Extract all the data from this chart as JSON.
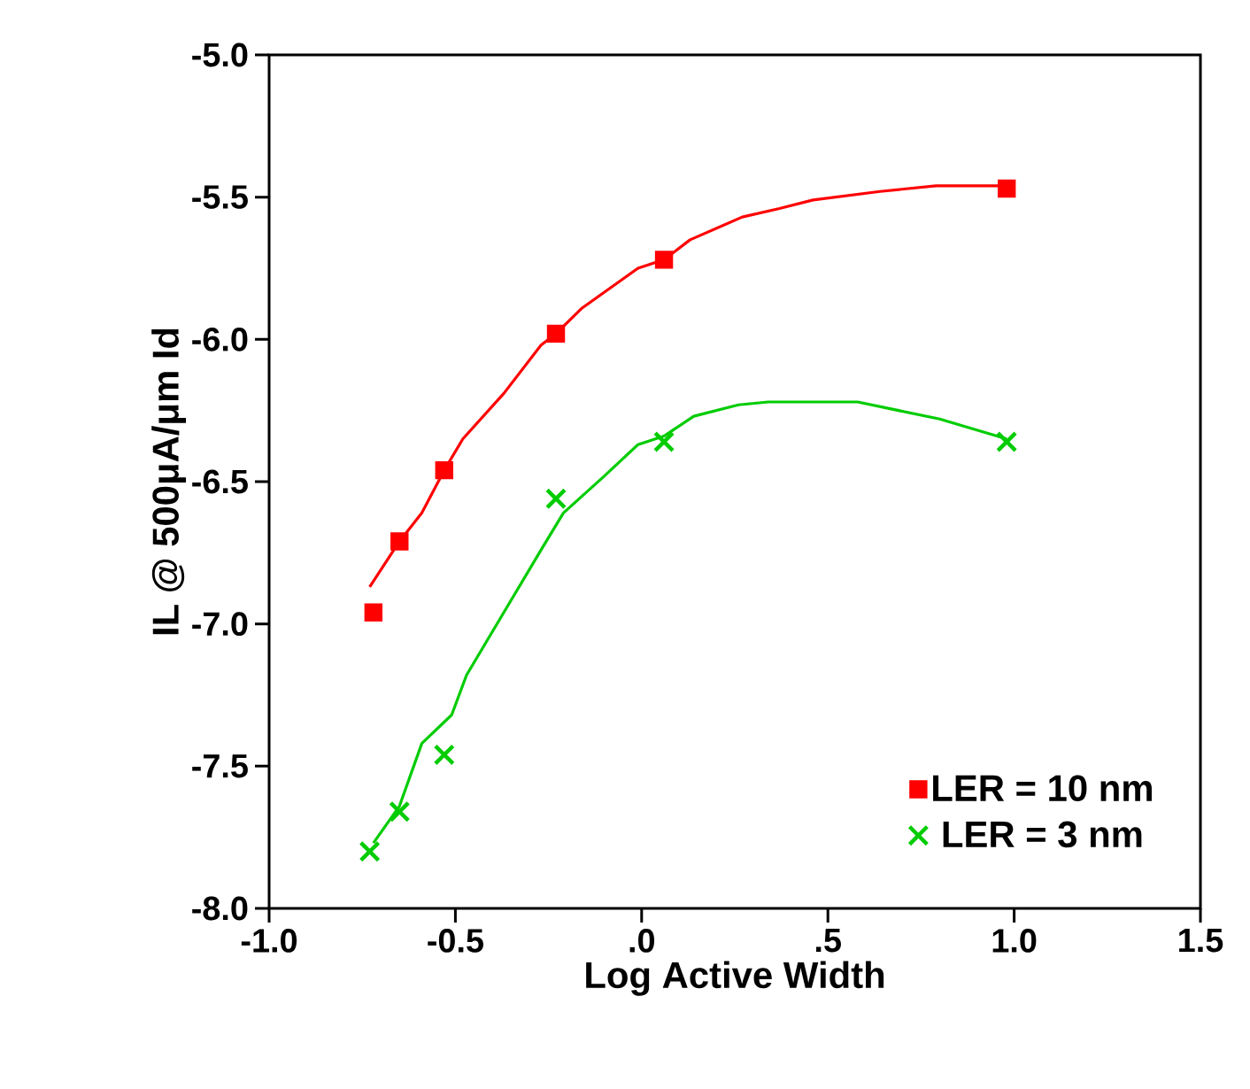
{
  "chart_data": {
    "type": "line",
    "xlabel": "Log Active Width",
    "ylabel": "IL @ 500μA/μm Id",
    "xlim": [
      -1.0,
      1.5
    ],
    "ylim": [
      -8.0,
      -5.0
    ],
    "xticks": [
      {
        "value": -1.0,
        "label": "-1.0"
      },
      {
        "value": -0.5,
        "label": "-0.5"
      },
      {
        "value": 0,
        "label": ".0"
      },
      {
        "value": 0.5,
        "label": ".5"
      },
      {
        "value": 1.0,
        "label": "1.0"
      },
      {
        "value": 1.5,
        "label": "1.5"
      }
    ],
    "yticks": [
      {
        "value": -5.0,
        "label": "-5.0"
      },
      {
        "value": -5.5,
        "label": "-5.5"
      },
      {
        "value": -6.0,
        "label": "-6.0"
      },
      {
        "value": -6.5,
        "label": "-6.5"
      },
      {
        "value": -7.0,
        "label": "-7.0"
      },
      {
        "value": -7.5,
        "label": "-7.5"
      },
      {
        "value": -8.0,
        "label": "-8.0"
      }
    ],
    "legend": "bottom right",
    "line_style": "solid",
    "series": [
      {
        "type": "scatter",
        "name": "LER = 10 nm",
        "color": "#ff0000",
        "marker": "square",
        "x": [
          -0.72,
          -0.65,
          -0.53,
          -0.23,
          0.06,
          0.98
        ],
        "values": [
          -6.96,
          -6.71,
          -6.46,
          -5.98,
          -5.72,
          -5.47
        ]
      },
      {
        "type": "scatter",
        "name": "LER = 3 nm",
        "color": "#00cc00",
        "marker": "cross",
        "x": [
          -0.73,
          -0.65,
          -0.53,
          -0.23,
          0.06,
          0.98
        ],
        "values": [
          -7.8,
          -7.66,
          -7.46,
          -6.56,
          -6.36,
          -6.36
        ]
      },
      {
        "color": "#ff0000",
        "marker": "none",
        "x": [
          -0.73,
          -0.65,
          -0.59,
          -0.53,
          -0.48,
          -0.37,
          -0.27,
          -0.23,
          -0.16,
          -0.01,
          0.06,
          0.13,
          0.27,
          0.37,
          0.46,
          0.64,
          0.79,
          0.98
        ],
        "values": [
          -6.87,
          -6.71,
          -6.61,
          -6.46,
          -6.35,
          -6.19,
          -6.02,
          -5.98,
          -5.89,
          -5.75,
          -5.72,
          -5.65,
          -5.57,
          -5.54,
          -5.51,
          -5.48,
          -5.46,
          -5.46
        ]
      },
      {
        "color": "#00cc00",
        "marker": "none",
        "x": [
          -0.72,
          -0.65,
          -0.59,
          -0.51,
          -0.47,
          -0.37,
          -0.27,
          -0.21,
          -0.1,
          -0.01,
          0.06,
          0.14,
          0.26,
          0.34,
          0.58,
          0.69,
          0.8,
          0.98
        ],
        "values": [
          -7.77,
          -7.64,
          -7.42,
          -7.32,
          -7.18,
          -6.96,
          -6.74,
          -6.61,
          -6.48,
          -6.37,
          -6.34,
          -6.27,
          -6.23,
          -6.22,
          -6.22,
          -6.25,
          -6.28,
          -6.35
        ]
      }
    ]
  }
}
